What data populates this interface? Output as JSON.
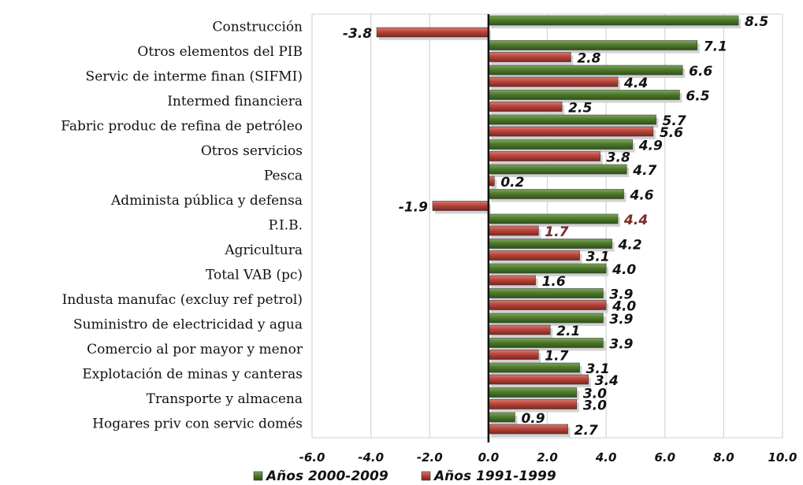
{
  "chart_data": {
    "type": "bar",
    "orientation": "horizontal",
    "categories": [
      "Construcción",
      "Otros elementos del PIB",
      "Servic de interme finan (SIFMI)",
      "Intermed financiera",
      "Fabric produc de refina de petróleo",
      "Otros servicios",
      "Pesca",
      "Administa pública y defensa",
      "P.I.B.",
      "Agricultura",
      "Total VAB (pc)",
      "Industa manufac (excluy ref petrol)",
      "Suministro de electricidad y agua",
      "Comercio al por mayor y menor",
      "Explotación de minas y canteras",
      "Transporte y almacena",
      "Hogares priv con servic domés"
    ],
    "series": [
      {
        "name": "Años 2000-2009",
        "color": "#4e7a2c",
        "values": [
          8.5,
          7.1,
          6.6,
          6.5,
          5.7,
          4.9,
          4.7,
          4.6,
          4.4,
          4.2,
          4.0,
          3.9,
          3.9,
          3.9,
          3.1,
          3.0,
          0.9
        ],
        "labels": [
          "8.5",
          "7.1",
          "6.6",
          "6.5",
          "5.7",
          "4.9",
          "4.7",
          "4.6",
          "4.4",
          "4.2",
          "4.0",
          "3.9",
          "3.9",
          "3.9",
          "3.1",
          "3.0",
          "0.9"
        ]
      },
      {
        "name": "Años 1991-1999",
        "color": "#b8453b",
        "values": [
          -3.8,
          2.8,
          4.4,
          2.5,
          5.6,
          3.8,
          0.2,
          -1.9,
          1.7,
          3.1,
          1.6,
          4.0,
          2.1,
          1.7,
          3.4,
          3.0,
          2.7
        ],
        "labels": [
          "-3.8",
          "2.8",
          "4.4",
          "2.5",
          "5.6",
          "3.8",
          "0.2",
          "-1.9",
          "1.7",
          "3.1",
          "1.6",
          "4.0",
          "2.1",
          "1.7",
          "3.4",
          "3.0",
          "2.7"
        ]
      }
    ],
    "xlim": [
      -6.0,
      10.0
    ],
    "x_ticks": [
      "-6.0",
      "-4.0",
      "-2.0",
      "0.0",
      "2.0",
      "4.0",
      "6.0",
      "8.0",
      "10.0"
    ],
    "grid": "vertical",
    "legend_position": "bottom",
    "title": "",
    "xlabel": "",
    "ylabel": ""
  }
}
